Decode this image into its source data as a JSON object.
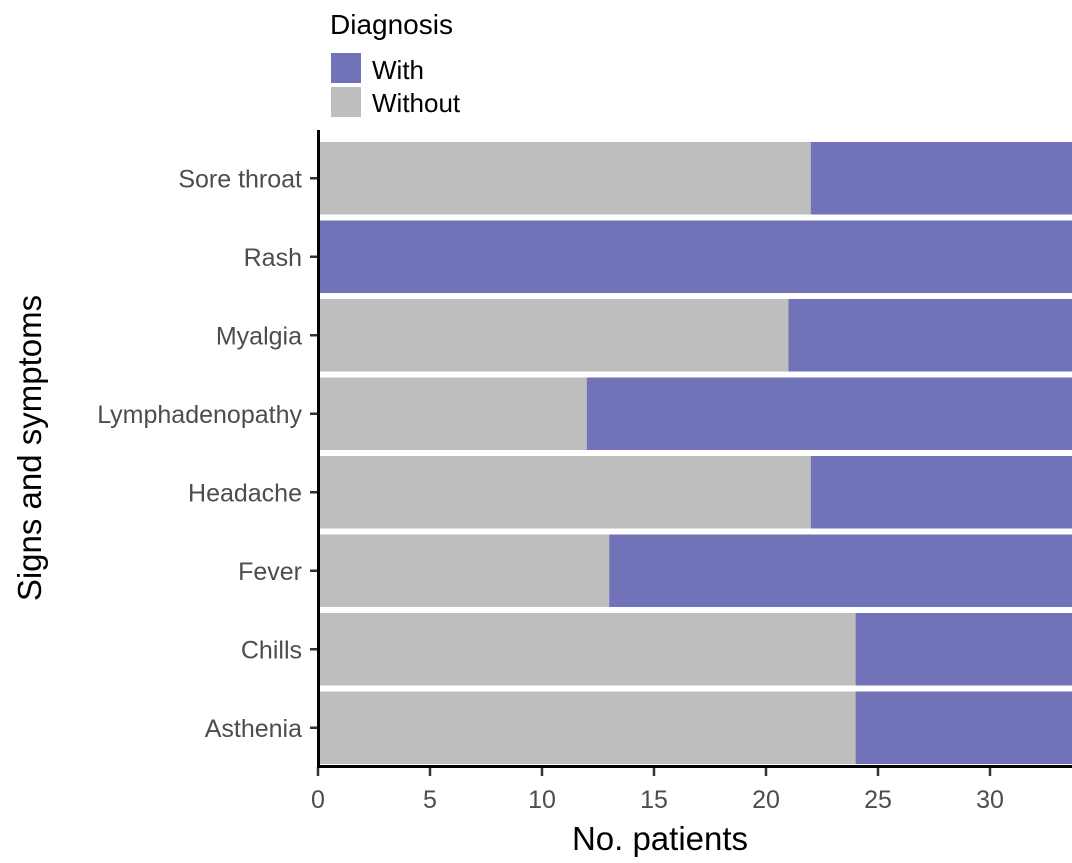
{
  "chart_data": {
    "type": "bar",
    "orientation": "horizontal",
    "stacked": true,
    "categories": [
      "Asthenia",
      "Chills",
      "Fever",
      "Headache",
      "Lymphadenopathy",
      "Myalgia",
      "Rash",
      "Sore throat"
    ],
    "series": [
      {
        "name": "Without",
        "color": "#bebebe",
        "values": [
          24,
          24,
          13,
          22,
          12,
          21,
          0,
          22
        ]
      },
      {
        "name": "With",
        "color": "#7272b8",
        "values": [
          10,
          10,
          21,
          12,
          22,
          13,
          34,
          12
        ]
      }
    ],
    "xlabel": "No. patients",
    "ylabel": "Signs and symptoms",
    "xticks": [
      0,
      5,
      10,
      15,
      20,
      25,
      30
    ],
    "xlim": [
      0,
      33.5
    ],
    "legend": {
      "title": "Diagnosis",
      "entries": [
        {
          "label": "With",
          "color": "#7272b8"
        },
        {
          "label": "Without",
          "color": "#bebebe"
        }
      ],
      "position": "top-left"
    },
    "grid": false
  }
}
